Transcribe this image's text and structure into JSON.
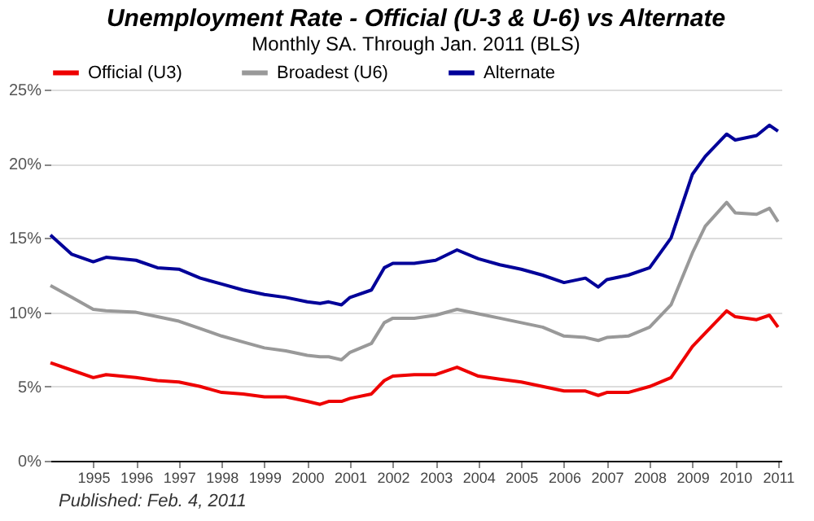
{
  "chart_data": {
    "type": "line",
    "title": "Unemployment Rate - Official (U-3 & U-6) vs Alternate",
    "subtitle": "Monthly SA. Through Jan. 2011  (BLS)",
    "annotations": [
      "Published: Feb. 4, 2011"
    ],
    "x": [
      1994.0,
      1994.5,
      1995.0,
      1995.3,
      1996.0,
      1996.5,
      1997.0,
      1997.5,
      1998.0,
      1998.5,
      1999.0,
      1999.5,
      2000.0,
      2000.3,
      2000.5,
      2000.8,
      2001.0,
      2001.5,
      2001.8,
      2002.0,
      2002.5,
      2003.0,
      2003.5,
      2004.0,
      2004.5,
      2005.0,
      2005.5,
      2006.0,
      2006.5,
      2006.8,
      2007.0,
      2007.5,
      2008.0,
      2008.5,
      2009.0,
      2009.3,
      2009.8,
      2010.0,
      2010.5,
      2010.8,
      2011.0
    ],
    "series": [
      {
        "name": "Official (U3)",
        "color": "#ee0000",
        "values": [
          6.6,
          6.1,
          5.6,
          5.8,
          5.6,
          5.4,
          5.3,
          5.0,
          4.6,
          4.5,
          4.3,
          4.3,
          4.0,
          3.8,
          4.0,
          4.0,
          4.2,
          4.5,
          5.4,
          5.7,
          5.8,
          5.8,
          6.3,
          5.7,
          5.5,
          5.3,
          5.0,
          4.7,
          4.7,
          4.4,
          4.6,
          4.6,
          5.0,
          5.6,
          7.7,
          8.6,
          10.1,
          9.7,
          9.5,
          9.8,
          9.0
        ]
      },
      {
        "name": "Broadest (U6)",
        "color": "#999999",
        "values": [
          11.8,
          11.0,
          10.2,
          10.1,
          10.0,
          9.7,
          9.4,
          8.9,
          8.4,
          8.0,
          7.6,
          7.4,
          7.1,
          7.0,
          7.0,
          6.8,
          7.3,
          7.9,
          9.3,
          9.6,
          9.6,
          9.8,
          10.2,
          9.9,
          9.6,
          9.3,
          9.0,
          8.4,
          8.3,
          8.1,
          8.3,
          8.4,
          9.0,
          10.5,
          14.0,
          15.8,
          17.4,
          16.7,
          16.6,
          17.0,
          16.1
        ]
      },
      {
        "name": "Alternate",
        "color": "#000099",
        "values": [
          15.2,
          13.9,
          13.4,
          13.7,
          13.5,
          13.0,
          12.9,
          12.3,
          11.9,
          11.5,
          11.2,
          11.0,
          10.7,
          10.6,
          10.7,
          10.5,
          11.0,
          11.5,
          13.0,
          13.3,
          13.3,
          13.5,
          14.2,
          13.6,
          13.2,
          12.9,
          12.5,
          12.0,
          12.3,
          11.7,
          12.2,
          12.5,
          13.0,
          15.0,
          19.3,
          20.5,
          22.0,
          21.6,
          21.9,
          22.6,
          22.2
        ]
      }
    ],
    "xlim": [
      1994.0,
      2011.08
    ],
    "xticks": [
      1995,
      1996,
      1997,
      1998,
      1999,
      2000,
      2001,
      2002,
      2003,
      2004,
      2005,
      2006,
      2007,
      2008,
      2009,
      2010,
      2011
    ],
    "ylim": [
      0,
      25
    ],
    "yticks": [
      {
        "value": 0,
        "label": "0%"
      },
      {
        "value": 5,
        "label": "5%"
      },
      {
        "value": 10,
        "label": "10%"
      },
      {
        "value": 15,
        "label": "15%"
      },
      {
        "value": 20,
        "label": "20%"
      },
      {
        "value": 25,
        "label": "25%"
      }
    ],
    "grid": "y",
    "legend": "top",
    "marker": "none",
    "line_style": "solid"
  }
}
